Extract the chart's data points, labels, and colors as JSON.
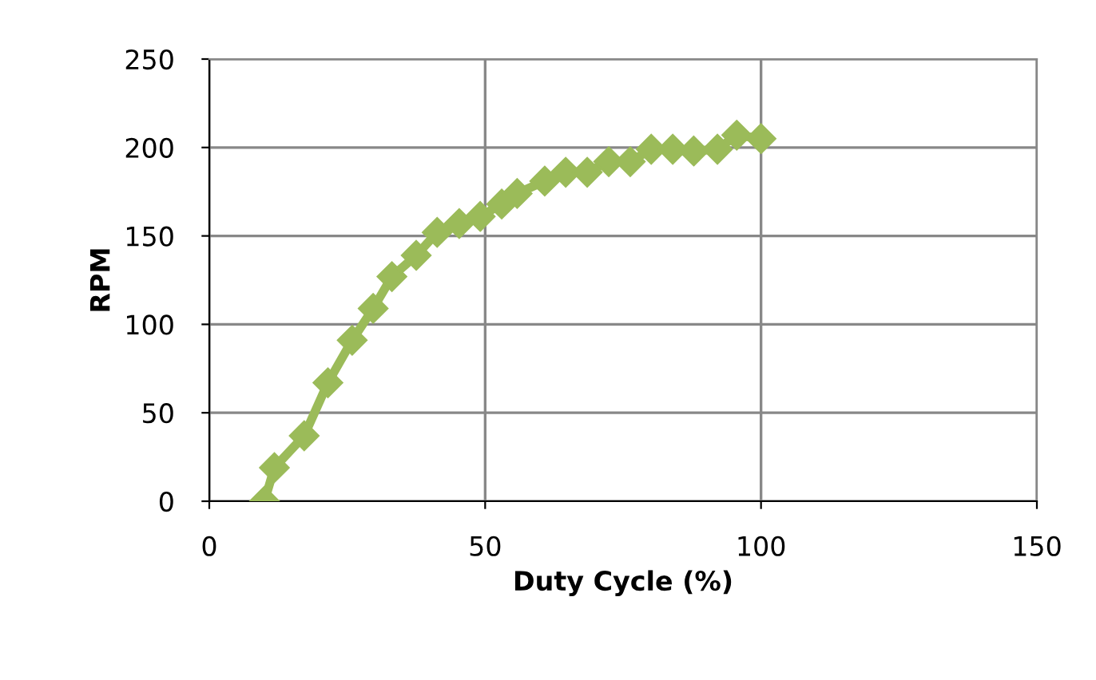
{
  "chart_data": {
    "type": "line",
    "xlabel": "Duty Cycle (%)",
    "ylabel": "RPM",
    "series": [
      {
        "color": "#9bbb59",
        "x": [
          10,
          11.8,
          17.2,
          21.5,
          25.9,
          29.7,
          33.1,
          37.5,
          41.3,
          45.3,
          49.1,
          53,
          55.8,
          60.8,
          64.6,
          68.5,
          72.4,
          76.3,
          80.1,
          84,
          87.8,
          92.1,
          95.6,
          100
        ],
        "values": [
          0,
          19,
          37,
          67,
          91,
          109,
          127,
          139,
          152,
          157,
          161,
          168,
          174,
          181,
          186,
          186,
          192,
          192,
          199,
          199,
          198,
          199,
          207,
          205
        ]
      }
    ],
    "xlim": [
      0,
      150
    ],
    "ylim": [
      0,
      250
    ],
    "xticks": [
      0,
      50,
      100,
      150
    ],
    "yticks": [
      0,
      50,
      100,
      150,
      200,
      250
    ],
    "grid": true,
    "marker": "diamond",
    "line_style": "solid",
    "legend": false
  }
}
